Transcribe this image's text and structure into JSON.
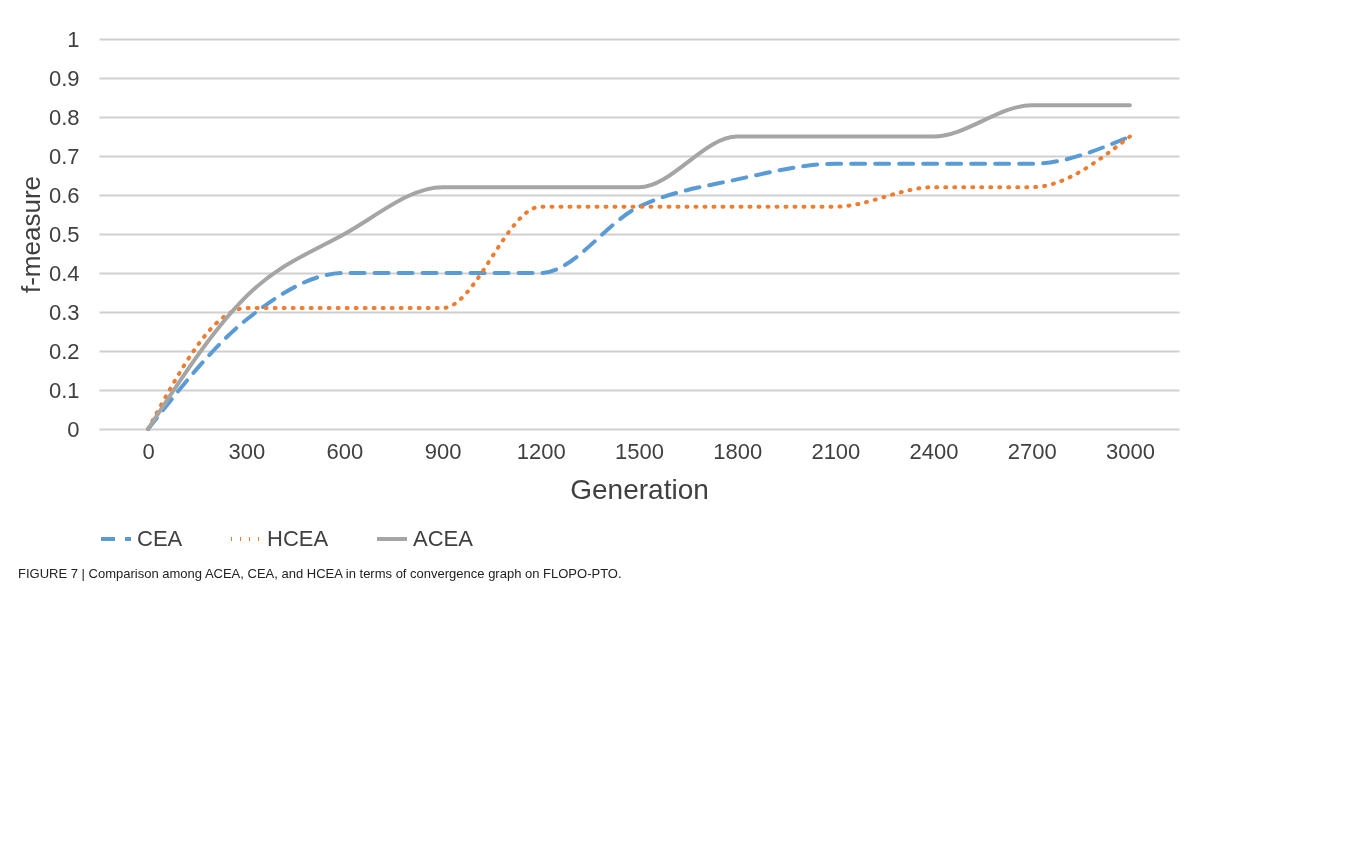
{
  "chart_data": {
    "type": "line",
    "xlabel": "Generation",
    "ylabel": "f-measure",
    "categories": [
      "0",
      "300",
      "600",
      "900",
      "1200",
      "1500",
      "1800",
      "2100",
      "2400",
      "2700",
      "3000"
    ],
    "series": [
      {
        "name": "CEA",
        "color": "#5b9bd5",
        "line_style": "dashed",
        "values": [
          0,
          0.28,
          0.4,
          0.4,
          0.4,
          0.57,
          0.64,
          0.68,
          0.68,
          0.68,
          0.75
        ]
      },
      {
        "name": "HCEA",
        "color": "#ed7d31",
        "line_style": "dotted",
        "values": [
          0,
          0.31,
          0.31,
          0.31,
          0.57,
          0.57,
          0.57,
          0.57,
          0.62,
          0.62,
          0.75
        ]
      },
      {
        "name": "ACEA",
        "color": "#a5a5a5",
        "line_style": "solid",
        "values": [
          0,
          0.34,
          0.5,
          0.62,
          0.62,
          0.62,
          0.75,
          0.75,
          0.75,
          0.83,
          0.83
        ]
      }
    ],
    "ylim": [
      0,
      1
    ],
    "yticks": [
      0,
      0.1,
      0.2,
      0.3,
      0.4,
      0.5,
      0.6,
      0.7,
      0.8,
      0.9,
      1
    ],
    "grid": "y",
    "legend": "bottom",
    "marker": "none",
    "annotations": [
      "FIGURE 7 | Comparison among ACEA, CEA, and HCEA in terms of convergence graph on FLOPO-PTO."
    ]
  }
}
